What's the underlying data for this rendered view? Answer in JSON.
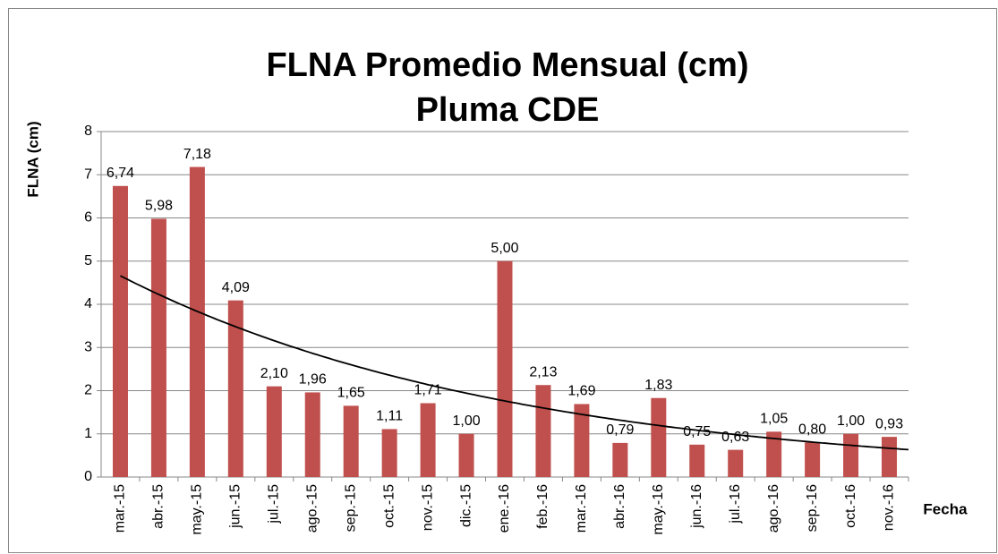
{
  "chart_data": {
    "type": "bar",
    "title": [
      "FLNA Promedio Mensual (cm)",
      "Pluma CDE"
    ],
    "ylabel": "FLNA (cm)",
    "xlabel": "Fecha",
    "categories": [
      "mar.-15",
      "abr.-15",
      "may.-15",
      "jun.-15",
      "jul.-15",
      "ago.-15",
      "sep.-15",
      "oct.-15",
      "nov.-15",
      "dic.-15",
      "ene.-16",
      "feb.-16",
      "mar.-16",
      "abr.-16",
      "may.-16",
      "jun.-16",
      "jul.-16",
      "ago.-16",
      "sep.-16",
      "oct.-16",
      "nov.-16"
    ],
    "values": [
      6.74,
      5.98,
      7.18,
      4.09,
      2.1,
      1.96,
      1.65,
      1.11,
      1.71,
      1.0,
      5.0,
      2.13,
      1.69,
      0.79,
      1.83,
      0.75,
      0.63,
      1.05,
      0.8,
      1.0,
      0.93
    ],
    "value_labels": [
      "6,74",
      "5,98",
      "7,18",
      "4,09",
      "2,10",
      "1,96",
      "1,65",
      "1,11",
      "1,71",
      "1,00",
      "5,00",
      "2,13",
      "1,69",
      "0,79",
      "1,83",
      "0,75",
      "0,63",
      "1,05",
      "0,80",
      "1,00",
      "0,93"
    ],
    "color": "#c0504d",
    "ylim": [
      0,
      8
    ],
    "yticks": [
      0,
      1,
      2,
      3,
      4,
      5,
      6,
      7,
      8
    ],
    "grid": true,
    "trendline": "exponential"
  }
}
